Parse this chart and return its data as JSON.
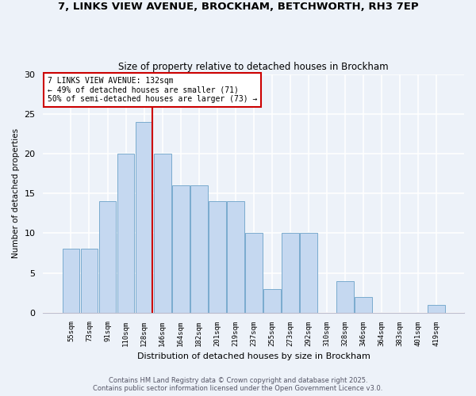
{
  "title_line1": "7, LINKS VIEW AVENUE, BROCKHAM, BETCHWORTH, RH3 7EP",
  "title_line2": "Size of property relative to detached houses in Brockham",
  "xlabel": "Distribution of detached houses by size in Brockham",
  "ylabel": "Number of detached properties",
  "bar_labels": [
    "55sqm",
    "73sqm",
    "91sqm",
    "110sqm",
    "128sqm",
    "146sqm",
    "164sqm",
    "182sqm",
    "201sqm",
    "219sqm",
    "237sqm",
    "255sqm",
    "273sqm",
    "292sqm",
    "310sqm",
    "328sqm",
    "346sqm",
    "364sqm",
    "383sqm",
    "401sqm",
    "419sqm"
  ],
  "bar_values": [
    8,
    8,
    14,
    20,
    24,
    20,
    16,
    16,
    14,
    14,
    10,
    3,
    10,
    10,
    0,
    4,
    2,
    0,
    0,
    0,
    1
  ],
  "bar_color": "#c5d8f0",
  "bar_edge_color": "#7aabce",
  "ref_line_index": 4,
  "reference_line_color": "#cc0000",
  "annotation_text": "7 LINKS VIEW AVENUE: 132sqm\n← 49% of detached houses are smaller (71)\n50% of semi-detached houses are larger (73) →",
  "annotation_box_color": "white",
  "annotation_box_edge_color": "#cc0000",
  "ylim": [
    0,
    30
  ],
  "yticks": [
    0,
    5,
    10,
    15,
    20,
    25,
    30
  ],
  "footer_line1": "Contains HM Land Registry data © Crown copyright and database right 2025.",
  "footer_line2": "Contains public sector information licensed under the Open Government Licence v3.0.",
  "bg_color": "#edf2f9",
  "grid_color": "#ffffff"
}
